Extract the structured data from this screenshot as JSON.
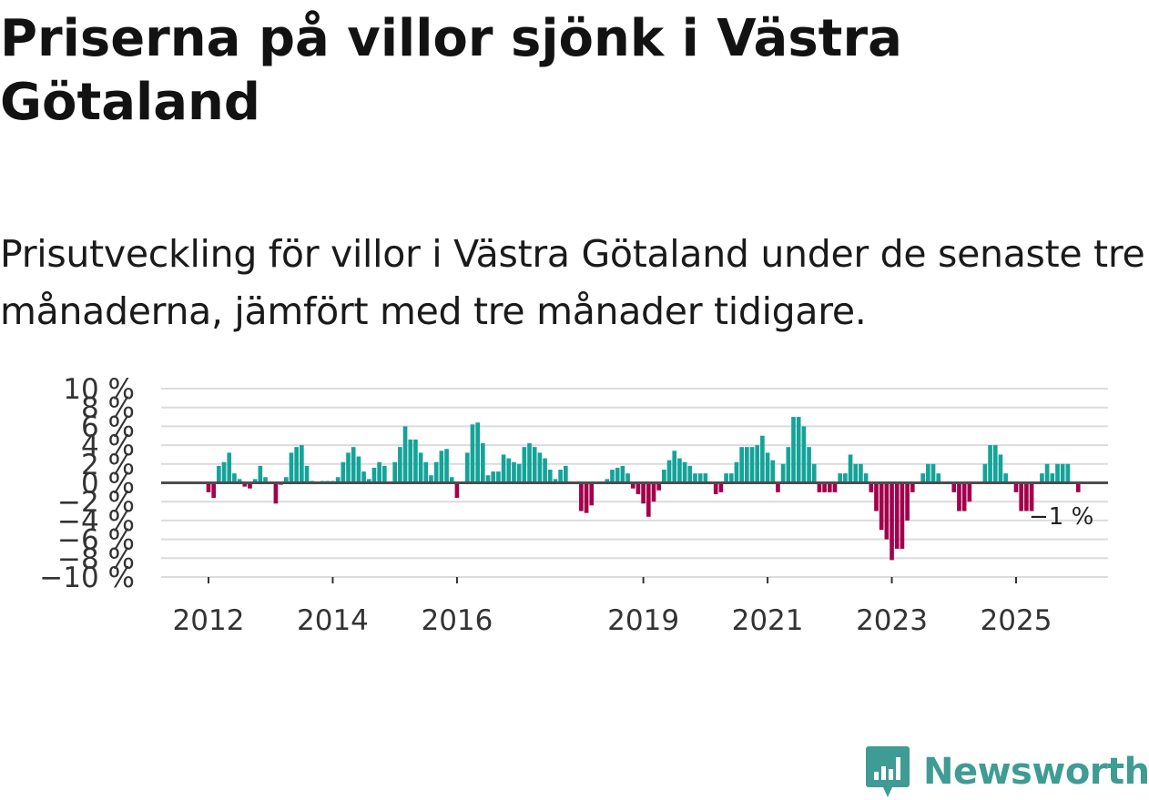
{
  "header": {
    "title": "Priserna på villor sjönk i Västra Götaland",
    "subtitle": "Prisutveckling för villor i Västra Götaland under de senaste tre månaderna, jämfört med tre månader tidigare."
  },
  "brand": {
    "name": "Newsworthy"
  },
  "colors": {
    "positive": "#14a399",
    "negative": "#a3004c",
    "grid": "#dcdcdc",
    "zero": "#4d4d4d",
    "brand": "#3e9c94"
  },
  "chart_data": {
    "type": "bar",
    "title": "Priserna på villor sjönk i Västra Götaland",
    "xlabel": "",
    "ylabel": "",
    "y_unit": "%",
    "ylim": [
      -10,
      10
    ],
    "y_ticks": [
      10,
      8,
      6,
      4,
      2,
      0,
      -2,
      -4,
      -6,
      -8,
      -10
    ],
    "y_tick_labels": [
      "10 %",
      "8 %",
      "6 %",
      "4 %",
      "2 %",
      "0 %",
      "−2 %",
      "−4 %",
      "−6 %",
      "−8 %",
      "−10 %"
    ],
    "x_ticks": [
      {
        "label": "2012",
        "year": 2012
      },
      {
        "label": "2014",
        "year": 2014
      },
      {
        "label": "2016",
        "year": 2016
      },
      {
        "label": "2019",
        "year": 2019
      },
      {
        "label": "2021",
        "year": 2021
      },
      {
        "label": "2023",
        "year": 2023
      },
      {
        "label": "2025",
        "year": 2025
      }
    ],
    "start_year": 2012,
    "start_month": 1,
    "end_label": "−1 %",
    "grid": true,
    "values": [
      -1,
      -1.6,
      1.8,
      2.2,
      3.2,
      1,
      0.4,
      -0.4,
      -0.6,
      0.4,
      1.8,
      0.6,
      0,
      -2.2,
      -0.2,
      0.6,
      3.2,
      3.8,
      4,
      1.8,
      0.2,
      0,
      0.2,
      0.2,
      0.2,
      0.6,
      2.2,
      3.2,
      3.8,
      2.8,
      1.2,
      0.4,
      1.6,
      2.2,
      1.8,
      0,
      2.2,
      3.8,
      6,
      4.6,
      4.6,
      3.2,
      2.2,
      0.8,
      2.2,
      3.4,
      3.6,
      0.6,
      -1.6,
      0,
      3.2,
      6.2,
      6.4,
      4.2,
      0.8,
      1.2,
      1.2,
      3,
      2.6,
      2.2,
      2,
      3.8,
      4.2,
      3.8,
      3.2,
      2.6,
      1.4,
      0.4,
      1.4,
      1.8,
      0,
      0,
      -3,
      -3.2,
      -2.4,
      0,
      0,
      0.4,
      1.4,
      1.6,
      1.8,
      1,
      -0.6,
      -1.2,
      -2.2,
      -3.6,
      -2,
      -0.8,
      1.4,
      2.4,
      3.4,
      2.6,
      2.2,
      1.8,
      1,
      1,
      1,
      0,
      -1.2,
      -1,
      1,
      1,
      2.2,
      3.8,
      3.8,
      3.8,
      4,
      5,
      3.2,
      2.4,
      -1,
      2,
      3.8,
      7,
      7,
      6,
      3.8,
      2,
      -1,
      -1,
      -1,
      -1,
      1,
      1,
      3,
      2,
      2,
      1,
      -1,
      -3,
      -5,
      -6,
      -8.2,
      -7,
      -7,
      -4,
      -1,
      0,
      1,
      2,
      2,
      1,
      0,
      0,
      -1,
      -3,
      -3,
      -2,
      0,
      0,
      2,
      4,
      4,
      3,
      1,
      0,
      -1,
      -3,
      -3,
      -3,
      0,
      1,
      2,
      1,
      2,
      2,
      2,
      0,
      -1
    ]
  }
}
